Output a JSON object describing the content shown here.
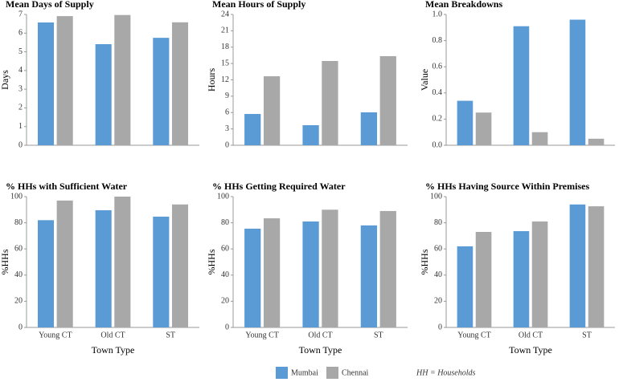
{
  "chart_data": [
    {
      "type": "bar",
      "title": "Mean Days of Supply",
      "ylabel": "Days",
      "categories": [
        null,
        null,
        null
      ],
      "series": [
        {
          "values": [
            6.57,
            5.41,
            5.75
          ]
        },
        {
          "values": [
            6.91,
            6.97,
            6.58
          ]
        }
      ],
      "ylim": [
        0,
        7
      ],
      "yticks": [
        0,
        1,
        2,
        3,
        4,
        5,
        6,
        7
      ]
    },
    {
      "type": "bar",
      "title": "Mean Hours of Supply",
      "ylabel": "Hours",
      "categories": [
        null,
        null,
        null
      ],
      "series": [
        {
          "values": [
            5.74,
            3.68,
            6.04
          ]
        },
        {
          "values": [
            12.66,
            15.46,
            16.35
          ]
        }
      ],
      "ylim": [
        0,
        24
      ],
      "yticks": [
        0,
        3,
        6,
        9,
        12,
        15,
        18,
        21,
        24
      ]
    },
    {
      "type": "bar",
      "title": "Mean Breakdowns",
      "ylabel": "Value",
      "categories": [
        null,
        null,
        null
      ],
      "series": [
        {
          "values": [
            0.34,
            0.91,
            0.96
          ]
        },
        {
          "values": [
            0.25,
            0.1,
            0.05
          ]
        }
      ],
      "ylim": [
        0,
        1
      ],
      "yticks": [
        {
          "value": 0,
          "label": "0.0"
        },
        0.2,
        0.4,
        0.6,
        0.8,
        {
          "value": 1,
          "label": "1.0"
        }
      ]
    },
    {
      "type": "bar",
      "title": "% HHs with Sufficient Water",
      "ylabel": "%HHs",
      "xlabel": "Town Type",
      "categories": [
        "Young CT",
        "Old CT",
        "ST"
      ],
      "series": [
        {
          "values": [
            82,
            89.6,
            84.7
          ]
        },
        {
          "values": [
            97,
            100,
            94
          ]
        }
      ],
      "ylim": [
        0,
        100
      ],
      "yticks": [
        0,
        20,
        40,
        60,
        80,
        100
      ]
    },
    {
      "type": "bar",
      "title": "% HHs Getting Required Water",
      "ylabel": "%HHs",
      "xlabel": "Town Type",
      "categories": [
        "Young CT",
        "Old CT",
        "ST"
      ],
      "series": [
        {
          "values": [
            75.5,
            81,
            78
          ]
        },
        {
          "values": [
            83.4,
            90,
            89
          ]
        }
      ],
      "ylim": [
        0,
        100
      ],
      "yticks": [
        0,
        20,
        40,
        60,
        80,
        100
      ]
    },
    {
      "type": "bar",
      "title": "% HHs Having Source Within Premises",
      "ylabel": "%HHs",
      "xlabel": "Town Type",
      "categories": [
        "Young CT",
        "Old CT",
        "ST"
      ],
      "series": [
        {
          "values": [
            62,
            73.6,
            94
          ]
        },
        {
          "values": [
            73,
            81,
            92.6
          ]
        }
      ],
      "ylim": [
        0,
        100
      ],
      "yticks": [
        0,
        20,
        40,
        60,
        80,
        100
      ]
    }
  ],
  "legend": [
    {
      "name": "Mumbai",
      "color": "#5b9bd5"
    },
    {
      "name": "Chennai",
      "color": "#a8a8a8"
    }
  ],
  "note": "HH = Households"
}
